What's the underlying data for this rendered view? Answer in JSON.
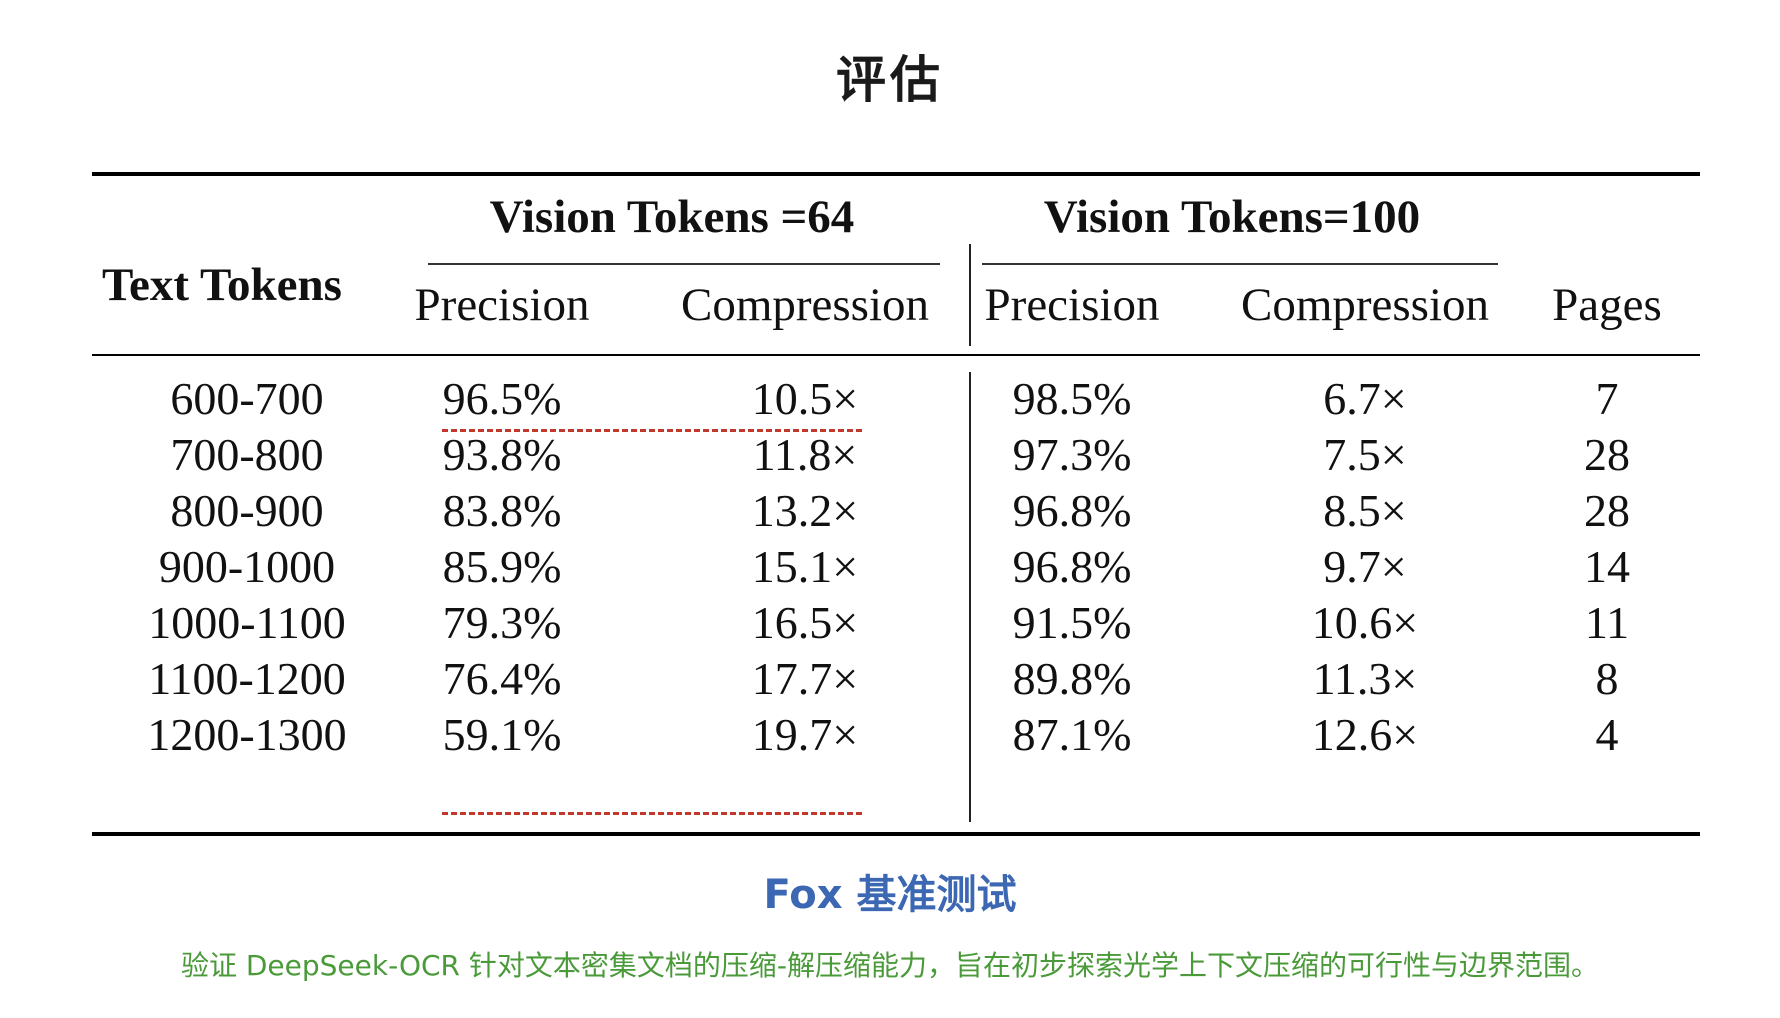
{
  "title": "评估",
  "table": {
    "row_header": "Text Tokens",
    "groups": [
      {
        "label": "Vision Tokens =64",
        "columns": [
          "Precision",
          "Compression"
        ]
      },
      {
        "label": "Vision Tokens=100",
        "columns": [
          "Precision",
          "Compression",
          "Pages"
        ]
      }
    ],
    "rows": [
      {
        "text_tokens": "600-700",
        "p64": "96.5%",
        "c64": "10.5×",
        "p100": "98.5%",
        "c100": "6.7×",
        "pages": "7"
      },
      {
        "text_tokens": "700-800",
        "p64": "93.8%",
        "c64": "11.8×",
        "p100": "97.3%",
        "c100": "7.5×",
        "pages": "28"
      },
      {
        "text_tokens": "800-900",
        "p64": "83.8%",
        "c64": "13.2×",
        "p100": "96.8%",
        "c100": "8.5×",
        "pages": "28"
      },
      {
        "text_tokens": "900-1000",
        "p64": "85.9%",
        "c64": "15.1×",
        "p100": "96.8%",
        "c100": "9.7×",
        "pages": "14"
      },
      {
        "text_tokens": "1000-1100",
        "p64": "79.3%",
        "c64": "16.5×",
        "p100": "91.5%",
        "c100": "10.6×",
        "pages": "11"
      },
      {
        "text_tokens": "1100-1200",
        "p64": "76.4%",
        "c64": "17.7×",
        "p100": "89.8%",
        "c100": "11.3×",
        "pages": "8"
      },
      {
        "text_tokens": "1200-1300",
        "p64": "59.1%",
        "c64": "19.7×",
        "p100": "87.1%",
        "c100": "12.6×",
        "pages": "4"
      }
    ]
  },
  "caption": {
    "title": "Fox 基准测试",
    "description": "验证 DeepSeek-OCR 针对文本密集文档的压缩-解压缩能力，旨在初步探索光学上下文压缩的可行性与边界范围。"
  },
  "colors": {
    "highlight_dash": "#c0392b",
    "caption_title": "#3b67b3",
    "caption_desc": "#4a9a3a"
  }
}
